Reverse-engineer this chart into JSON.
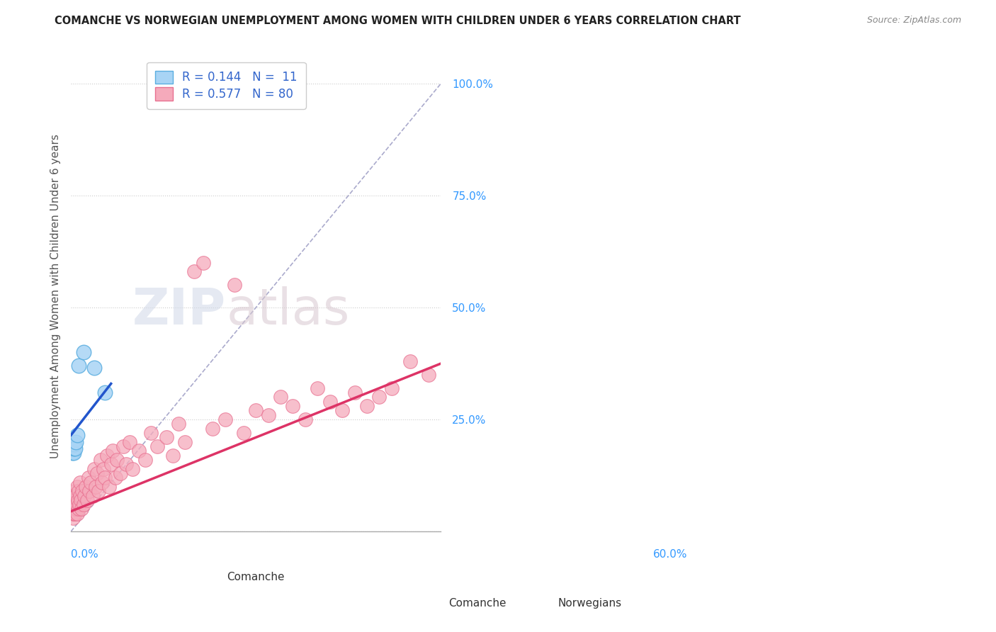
{
  "title": "COMANCHE VS NORWEGIAN UNEMPLOYMENT AMONG WOMEN WITH CHILDREN UNDER 6 YEARS CORRELATION CHART",
  "source": "Source: ZipAtlas.com",
  "ylabel": "Unemployment Among Women with Children Under 6 years",
  "y_ticks": [
    0.0,
    0.25,
    0.5,
    0.75,
    1.0
  ],
  "y_tick_labels": [
    "",
    "25.0%",
    "50.0%",
    "75.0%",
    "100.0%"
  ],
  "x_range": [
    0.0,
    0.6
  ],
  "y_range": [
    0.0,
    1.05
  ],
  "comanche_R": 0.144,
  "comanche_N": 11,
  "norwegian_R": 0.577,
  "norwegian_N": 80,
  "comanche_color": "#A8D4F5",
  "comanche_edge": "#5BAEE0",
  "norwegian_color": "#F5AABB",
  "norwegian_edge": "#E87090",
  "reg_blue": "#2255CC",
  "reg_pink": "#DD3366",
  "diag_color": "#AAAACC",
  "background": "#FFFFFF",
  "watermark_zip": "ZIP",
  "watermark_atlas": "atlas",
  "comanche_x": [
    0.002,
    0.005,
    0.005,
    0.006,
    0.007,
    0.008,
    0.01,
    0.012,
    0.02,
    0.038,
    0.055
  ],
  "comanche_y": [
    0.175,
    0.175,
    0.185,
    0.195,
    0.185,
    0.2,
    0.215,
    0.37,
    0.4,
    0.365,
    0.31
  ],
  "norwegian_x": [
    0.002,
    0.003,
    0.004,
    0.004,
    0.005,
    0.005,
    0.005,
    0.006,
    0.006,
    0.007,
    0.007,
    0.008,
    0.008,
    0.009,
    0.01,
    0.01,
    0.011,
    0.012,
    0.013,
    0.014,
    0.015,
    0.015,
    0.016,
    0.017,
    0.018,
    0.02,
    0.022,
    0.024,
    0.026,
    0.028,
    0.03,
    0.032,
    0.035,
    0.038,
    0.04,
    0.042,
    0.045,
    0.048,
    0.05,
    0.053,
    0.055,
    0.058,
    0.062,
    0.065,
    0.068,
    0.072,
    0.075,
    0.08,
    0.085,
    0.09,
    0.095,
    0.1,
    0.11,
    0.12,
    0.13,
    0.14,
    0.155,
    0.165,
    0.175,
    0.185,
    0.2,
    0.215,
    0.23,
    0.25,
    0.265,
    0.28,
    0.3,
    0.32,
    0.34,
    0.36,
    0.38,
    0.4,
    0.42,
    0.44,
    0.46,
    0.48,
    0.5,
    0.52,
    0.55,
    0.58
  ],
  "norwegian_y": [
    0.05,
    0.03,
    0.04,
    0.07,
    0.04,
    0.06,
    0.08,
    0.05,
    0.07,
    0.04,
    0.09,
    0.05,
    0.08,
    0.06,
    0.04,
    0.1,
    0.07,
    0.05,
    0.09,
    0.06,
    0.08,
    0.11,
    0.07,
    0.05,
    0.09,
    0.06,
    0.08,
    0.1,
    0.07,
    0.12,
    0.09,
    0.11,
    0.08,
    0.14,
    0.1,
    0.13,
    0.09,
    0.16,
    0.11,
    0.14,
    0.12,
    0.17,
    0.1,
    0.15,
    0.18,
    0.12,
    0.16,
    0.13,
    0.19,
    0.15,
    0.2,
    0.14,
    0.18,
    0.16,
    0.22,
    0.19,
    0.21,
    0.17,
    0.24,
    0.2,
    0.58,
    0.6,
    0.23,
    0.25,
    0.55,
    0.22,
    0.27,
    0.26,
    0.3,
    0.28,
    0.25,
    0.32,
    0.29,
    0.27,
    0.31,
    0.28,
    0.3,
    0.32,
    0.38,
    0.35
  ]
}
